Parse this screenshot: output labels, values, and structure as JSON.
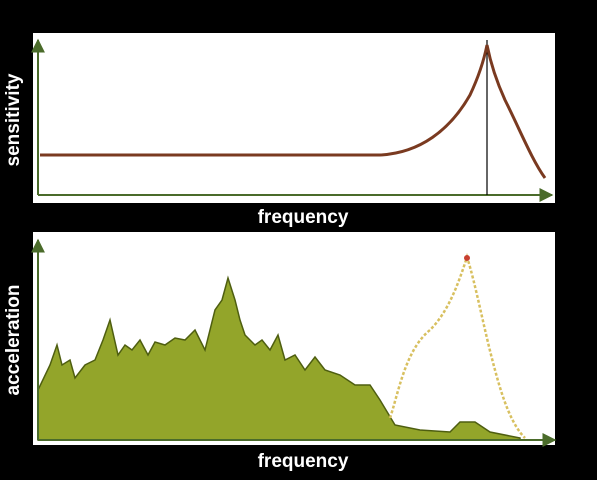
{
  "panels": [
    {
      "y_label": "sensitivity",
      "x_label": "frequency"
    },
    {
      "y_label": "acceleration",
      "x_label": "frequency"
    }
  ]
}
